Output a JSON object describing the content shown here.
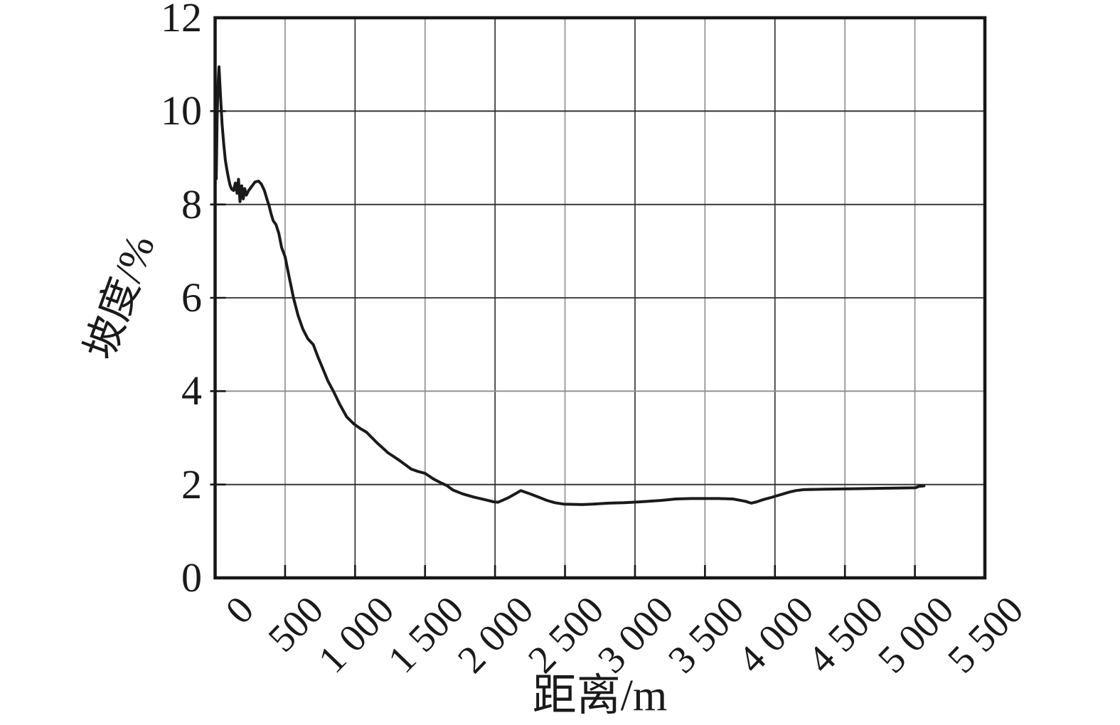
{
  "chart_data": {
    "type": "line",
    "title": "",
    "xlabel": "距离/m",
    "ylabel": "坡度/%",
    "xlim": [
      0,
      5500
    ],
    "ylim": [
      0,
      12
    ],
    "grid": true,
    "legend": null,
    "x_ticks": [
      {
        "value": 0,
        "label": "0"
      },
      {
        "value": 500,
        "label": "500"
      },
      {
        "value": 1000,
        "label": "1 000"
      },
      {
        "value": 1500,
        "label": "1 500"
      },
      {
        "value": 2000,
        "label": "2 000"
      },
      {
        "value": 2500,
        "label": "2 500"
      },
      {
        "value": 3000,
        "label": "3 000"
      },
      {
        "value": 3500,
        "label": "3 500"
      },
      {
        "value": 4000,
        "label": "4 000"
      },
      {
        "value": 4500,
        "label": "4 500"
      },
      {
        "value": 5000,
        "label": "5 000"
      },
      {
        "value": 5500,
        "label": "5 500"
      }
    ],
    "y_ticks": [
      {
        "value": 0,
        "label": "0"
      },
      {
        "value": 2,
        "label": "2"
      },
      {
        "value": 4,
        "label": "4"
      },
      {
        "value": 6,
        "label": "6"
      },
      {
        "value": 8,
        "label": "8"
      },
      {
        "value": 10,
        "label": "10"
      },
      {
        "value": 12,
        "label": "12"
      }
    ],
    "series": [
      {
        "name": "坡度",
        "color": "#1a1a1a",
        "points": [
          [
            8,
            8.55
          ],
          [
            14,
            9.8
          ],
          [
            20,
            10.5
          ],
          [
            28,
            10.95
          ],
          [
            38,
            10.35
          ],
          [
            50,
            9.72
          ],
          [
            62,
            9.28
          ],
          [
            73,
            8.95
          ],
          [
            83,
            8.77
          ],
          [
            95,
            8.57
          ],
          [
            106,
            8.42
          ],
          [
            118,
            8.33
          ],
          [
            132,
            8.3
          ],
          [
            145,
            8.46
          ],
          [
            157,
            8.24
          ],
          [
            167,
            8.54
          ],
          [
            178,
            8.06
          ],
          [
            190,
            8.4
          ],
          [
            201,
            8.12
          ],
          [
            212,
            8.34
          ],
          [
            223,
            8.2
          ],
          [
            240,
            8.3
          ],
          [
            260,
            8.38
          ],
          [
            285,
            8.48
          ],
          [
            310,
            8.5
          ],
          [
            330,
            8.44
          ],
          [
            352,
            8.3
          ],
          [
            372,
            8.1
          ],
          [
            385,
            7.98
          ],
          [
            400,
            7.8
          ],
          [
            415,
            7.65
          ],
          [
            435,
            7.57
          ],
          [
            455,
            7.38
          ],
          [
            475,
            7.08
          ],
          [
            500,
            6.88
          ],
          [
            527,
            6.48
          ],
          [
            560,
            6.0
          ],
          [
            593,
            5.62
          ],
          [
            627,
            5.33
          ],
          [
            663,
            5.12
          ],
          [
            701,
            5.0
          ],
          [
            735,
            4.73
          ],
          [
            767,
            4.5
          ],
          [
            806,
            4.22
          ],
          [
            845,
            4.0
          ],
          [
            890,
            3.72
          ],
          [
            940,
            3.45
          ],
          [
            991,
            3.3
          ],
          [
            1037,
            3.2
          ],
          [
            1082,
            3.12
          ],
          [
            1158,
            2.89
          ],
          [
            1235,
            2.68
          ],
          [
            1311,
            2.53
          ],
          [
            1402,
            2.33
          ],
          [
            1450,
            2.28
          ],
          [
            1500,
            2.24
          ],
          [
            1560,
            2.12
          ],
          [
            1610,
            2.04
          ],
          [
            1655,
            1.98
          ],
          [
            1700,
            1.88
          ],
          [
            1768,
            1.8
          ],
          [
            1850,
            1.73
          ],
          [
            1935,
            1.67
          ],
          [
            1990,
            1.63
          ],
          [
            2022,
            1.62
          ],
          [
            2090,
            1.71
          ],
          [
            2150,
            1.81
          ],
          [
            2184,
            1.87
          ],
          [
            2250,
            1.8
          ],
          [
            2311,
            1.73
          ],
          [
            2370,
            1.66
          ],
          [
            2428,
            1.61
          ],
          [
            2490,
            1.58
          ],
          [
            2620,
            1.57
          ],
          [
            2700,
            1.58
          ],
          [
            2810,
            1.6
          ],
          [
            2920,
            1.61
          ],
          [
            3040,
            1.63
          ],
          [
            3190,
            1.66
          ],
          [
            3290,
            1.69
          ],
          [
            3400,
            1.7
          ],
          [
            3600,
            1.7
          ],
          [
            3700,
            1.69
          ],
          [
            3790,
            1.64
          ],
          [
            3830,
            1.6
          ],
          [
            3870,
            1.63
          ],
          [
            3920,
            1.68
          ],
          [
            3970,
            1.72
          ],
          [
            4003,
            1.75
          ],
          [
            4060,
            1.8
          ],
          [
            4105,
            1.84
          ],
          [
            4150,
            1.87
          ],
          [
            4206,
            1.89
          ],
          [
            4350,
            1.9
          ],
          [
            4561,
            1.91
          ],
          [
            4800,
            1.92
          ],
          [
            5003,
            1.93
          ],
          [
            5030,
            1.96
          ],
          [
            5065,
            1.97
          ]
        ]
      }
    ],
    "style": {
      "line_color": "#1a1a1a",
      "border_color": "#161616",
      "grid_dark": "#2b2b2b",
      "grid_gray": "#8c8c8c",
      "gray_vertical_ticks": [
        500,
        1500,
        2500,
        3500,
        4500,
        5000
      ],
      "gray_horizontal_ticks": [
        4
      ],
      "text_color": "#1a1a1a"
    }
  }
}
